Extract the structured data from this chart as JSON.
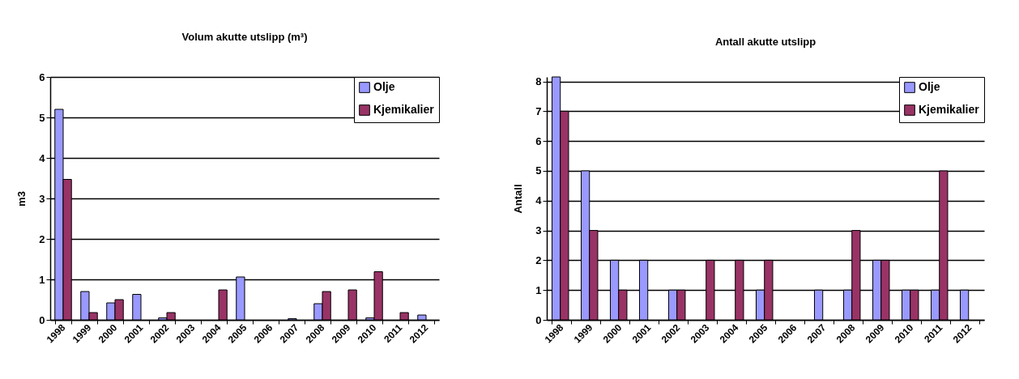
{
  "chart_data": [
    {
      "type": "bar",
      "title": "Volum akutte utslipp (m³)",
      "ylabel": "m3",
      "categories": [
        "1998",
        "1999",
        "2000",
        "2001",
        "2002",
        "2003",
        "2004",
        "2005",
        "2006",
        "2007",
        "2008",
        "2009",
        "2010",
        "2011",
        "2012"
      ],
      "series": [
        {
          "name": "Olje",
          "color": "#9999ff",
          "values": [
            5.2,
            0.7,
            0.42,
            0.63,
            0.05,
            null,
            null,
            1.06,
            null,
            0.03,
            0.4,
            null,
            0.05,
            null,
            0.12
          ]
        },
        {
          "name": "Kjemikalier",
          "color": "#993366",
          "values": [
            3.47,
            0.18,
            0.5,
            null,
            0.18,
            null,
            0.74,
            null,
            null,
            null,
            0.7,
            0.74,
            1.19,
            0.18,
            null
          ]
        }
      ],
      "ylim": [
        0,
        6
      ],
      "yticks": [
        0,
        1,
        2,
        3,
        4,
        5,
        6
      ],
      "grid": "y",
      "legend": "top right"
    },
    {
      "type": "bar",
      "title": "Antall akutte utslipp",
      "ylabel": "Antall",
      "categories": [
        "1998",
        "1999",
        "2000",
        "2001",
        "2002",
        "2003",
        "2004",
        "2005",
        "2006",
        "2007",
        "2008",
        "2009",
        "2010",
        "2011",
        "2012"
      ],
      "series": [
        {
          "name": "Olje",
          "color": "#9999ff",
          "values": [
            8.15,
            5,
            2,
            2,
            1,
            null,
            null,
            1,
            null,
            1,
            1,
            2,
            1,
            1,
            1
          ]
        },
        {
          "name": "Kjemikalier",
          "color": "#993366",
          "values": [
            7,
            3,
            1,
            null,
            1,
            2,
            2,
            2,
            null,
            null,
            3,
            2,
            1,
            5,
            null
          ]
        }
      ],
      "ylim": [
        0,
        8.15
      ],
      "yticks": [
        0,
        1,
        2,
        3,
        4,
        5,
        6,
        7,
        8
      ],
      "grid": "y",
      "legend": "top right"
    }
  ]
}
